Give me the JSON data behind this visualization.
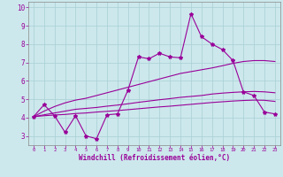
{
  "xlabel": "Windchill (Refroidissement éolien,°C)",
  "bg_color": "#cce8ec",
  "line_color": "#990099",
  "xlim": [
    -0.5,
    23.5
  ],
  "ylim": [
    2.5,
    10.3
  ],
  "yticks": [
    3,
    4,
    5,
    6,
    7,
    8,
    9,
    10
  ],
  "xticks": [
    0,
    1,
    2,
    3,
    4,
    5,
    6,
    7,
    8,
    9,
    10,
    11,
    12,
    13,
    14,
    15,
    16,
    17,
    18,
    19,
    20,
    21,
    22,
    23
  ],
  "x": [
    0,
    1,
    2,
    3,
    4,
    5,
    6,
    7,
    8,
    9,
    10,
    11,
    12,
    13,
    14,
    15,
    16,
    17,
    18,
    19,
    20,
    21,
    22,
    23
  ],
  "line1": [
    4.05,
    4.7,
    4.1,
    3.2,
    4.1,
    3.0,
    2.85,
    4.15,
    4.2,
    5.5,
    7.3,
    7.2,
    7.5,
    7.3,
    7.25,
    9.65,
    8.4,
    8.0,
    7.7,
    7.1,
    5.4,
    5.2,
    4.3,
    4.2
  ],
  "line2": [
    4.05,
    4.35,
    4.6,
    4.8,
    4.95,
    5.05,
    5.2,
    5.35,
    5.5,
    5.65,
    5.8,
    5.95,
    6.1,
    6.25,
    6.4,
    6.5,
    6.6,
    6.7,
    6.82,
    6.95,
    7.05,
    7.1,
    7.1,
    7.05
  ],
  "line3": [
    4.05,
    4.15,
    4.25,
    4.35,
    4.45,
    4.5,
    4.55,
    4.62,
    4.68,
    4.75,
    4.83,
    4.9,
    4.97,
    5.03,
    5.1,
    5.15,
    5.2,
    5.28,
    5.33,
    5.37,
    5.4,
    5.42,
    5.4,
    5.35
  ],
  "line4": [
    4.05,
    4.1,
    4.14,
    4.17,
    4.22,
    4.25,
    4.3,
    4.34,
    4.38,
    4.43,
    4.48,
    4.53,
    4.58,
    4.62,
    4.67,
    4.72,
    4.77,
    4.82,
    4.86,
    4.9,
    4.93,
    4.95,
    4.94,
    4.88
  ]
}
